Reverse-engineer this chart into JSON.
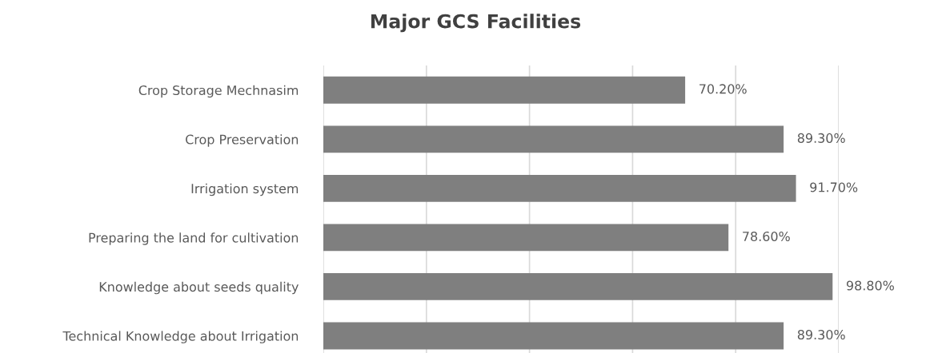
{
  "chart_data": {
    "type": "bar",
    "orientation": "horizontal",
    "title": "Major GCS Facilities",
    "categories": [
      "Crop Storage Mechnasim",
      "Crop Preservation",
      "Irrigation system",
      "Preparing the land for cultivation",
      "Knowledge about seeds quality",
      "Technical Knowledge about Irrigation"
    ],
    "values": [
      70.2,
      89.3,
      91.7,
      78.6,
      98.8,
      89.3
    ],
    "value_labels": [
      "70.20%",
      "89.30%",
      "91.70%",
      "78.60%",
      "98.80%",
      "89.30%"
    ],
    "color": "#7f7f7f",
    "xlim": [
      0,
      100
    ],
    "xticks": [
      {
        "value": 0,
        "label": null
      },
      {
        "value": 20,
        "label": null
      },
      {
        "value": 40,
        "label": null
      },
      {
        "value": 60,
        "label": null
      },
      {
        "value": 80,
        "label": null
      },
      {
        "value": 100,
        "label": null
      }
    ],
    "tick_labels": "y",
    "grid": "x"
  }
}
